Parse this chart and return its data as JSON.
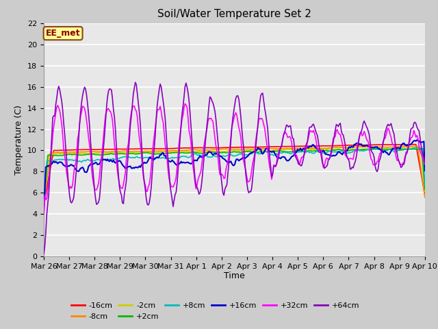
{
  "title": "Soil/Water Temperature Set 2",
  "xlabel": "Time",
  "ylabel": "Temperature (C)",
  "ylim": [
    0,
    22
  ],
  "yticks": [
    0,
    2,
    4,
    6,
    8,
    10,
    12,
    14,
    16,
    18,
    20,
    22
  ],
  "annotation_text": "EE_met",
  "annotation_bg": "#ffff99",
  "annotation_border": "#8b4513",
  "series": {
    "-16cm": {
      "color": "#ff0000",
      "lw": 1.2
    },
    "-8cm": {
      "color": "#ff8800",
      "lw": 1.2
    },
    "-2cm": {
      "color": "#cccc00",
      "lw": 1.2
    },
    "+2cm": {
      "color": "#00bb00",
      "lw": 1.2
    },
    "+8cm": {
      "color": "#00bbbb",
      "lw": 1.2
    },
    "+16cm": {
      "color": "#0000cc",
      "lw": 1.5
    },
    "+32cm": {
      "color": "#ff00ff",
      "lw": 1.2
    },
    "+64cm": {
      "color": "#8800bb",
      "lw": 1.2
    }
  },
  "plot_facecolor": "#e8e8e8",
  "fig_facecolor": "#cccccc",
  "grid_color": "#ffffff",
  "tick_label_fontsize": 8,
  "axis_label_fontsize": 9,
  "title_fontsize": 11
}
